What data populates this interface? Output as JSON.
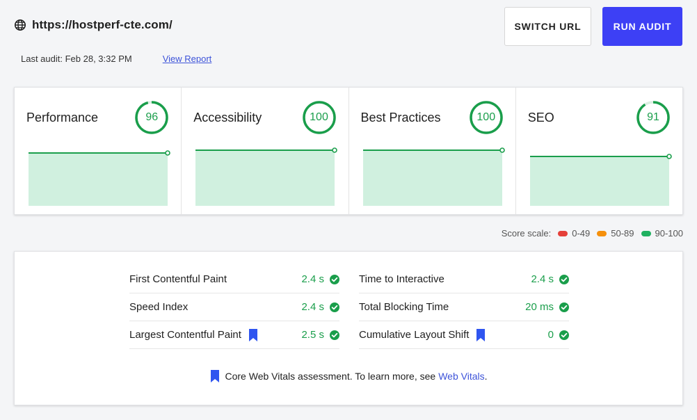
{
  "header": {
    "url": "https://hostperf-cte.com/",
    "last_audit": "Last audit: Feb 28, 3:32 PM",
    "view_report": "View Report",
    "switch_url_label": "SWITCH URL",
    "run_audit_label": "RUN AUDIT"
  },
  "scores": [
    {
      "title": "Performance",
      "score": "96",
      "value": 96,
      "history": [
        96,
        96,
        96
      ]
    },
    {
      "title": "Accessibility",
      "score": "100",
      "value": 100,
      "history": [
        100,
        100,
        100
      ]
    },
    {
      "title": "Best Practices",
      "score": "100",
      "value": 100,
      "history": [
        100,
        100,
        100
      ]
    },
    {
      "title": "SEO",
      "score": "91",
      "value": 91,
      "history": [
        91,
        91,
        91
      ]
    }
  ],
  "score_scale": {
    "label": "Score scale:",
    "ranges": [
      {
        "label": "0-49",
        "color": "#e5403a"
      },
      {
        "label": "50-89",
        "color": "#f5900c"
      },
      {
        "label": "90-100",
        "color": "#1fb060"
      }
    ]
  },
  "metrics": {
    "left": [
      {
        "name": "First Contentful Paint",
        "value": "2.4 s",
        "core": false
      },
      {
        "name": "Speed Index",
        "value": "2.4 s",
        "core": false
      },
      {
        "name": "Largest Contentful Paint",
        "value": "2.5 s",
        "core": true
      }
    ],
    "right": [
      {
        "name": "Time to Interactive",
        "value": "2.4 s",
        "core": false
      },
      {
        "name": "Total Blocking Time",
        "value": "20 ms",
        "core": false
      },
      {
        "name": "Cumulative Layout Shift",
        "value": "0",
        "core": true
      }
    ],
    "note_text": "Core Web Vitals assessment. To learn more, see",
    "note_link": "Web Vitals",
    "note_end": "."
  },
  "colors": {
    "good": "#1a9e4b",
    "accent": "#3d40f5",
    "bookmark": "#2f55f0"
  }
}
